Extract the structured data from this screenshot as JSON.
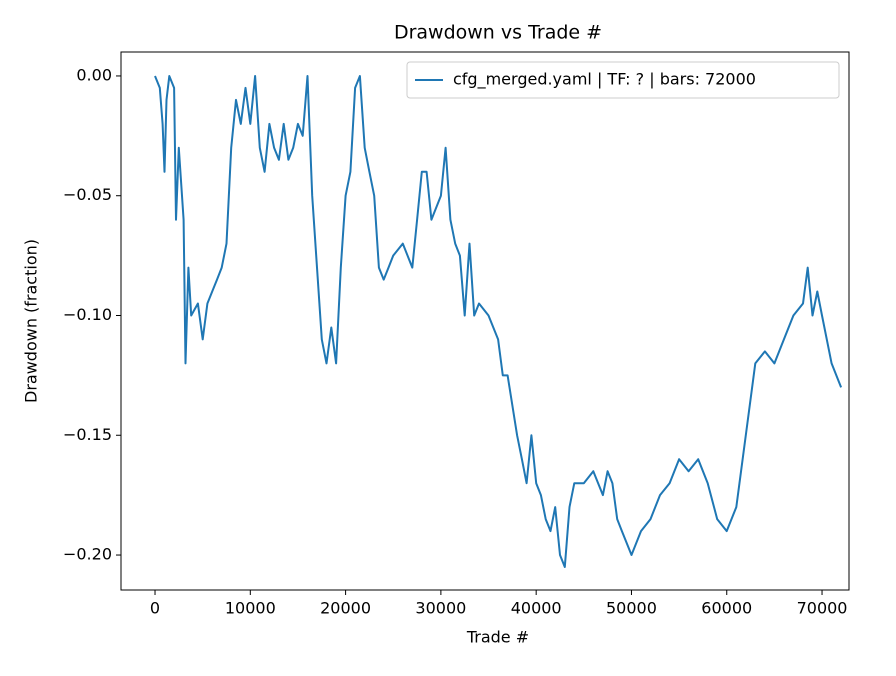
{
  "chart_data": {
    "type": "line",
    "title": "Drawdown vs Trade #",
    "x_label": "Trade #",
    "y_label": "Drawdown (fraction)",
    "x": [
      0,
      500,
      800,
      1000,
      1200,
      1500,
      2000,
      2200,
      2500,
      3000,
      3200,
      3500,
      3800,
      4500,
      5000,
      5500,
      6000,
      6500,
      7000,
      7500,
      8000,
      8500,
      9000,
      9500,
      10000,
      10500,
      11000,
      11500,
      12000,
      12500,
      13000,
      13500,
      14000,
      14500,
      15000,
      15500,
      16000,
      16500,
      17000,
      17500,
      18000,
      18500,
      19000,
      19500,
      20000,
      20500,
      21000,
      21500,
      22000,
      22500,
      23000,
      23500,
      24000,
      24500,
      25000,
      26000,
      27000,
      27500,
      28000,
      28500,
      29000,
      30000,
      30500,
      31000,
      31500,
      32000,
      32500,
      33000,
      33500,
      34000,
      35000,
      36000,
      36500,
      37000,
      38000,
      38500,
      39000,
      39500,
      40000,
      40500,
      41000,
      41500,
      42000,
      42500,
      43000,
      43500,
      44000,
      45000,
      46000,
      47000,
      47500,
      48000,
      48500,
      49000,
      50000,
      51000,
      52000,
      53000,
      54000,
      55000,
      56000,
      57000,
      58000,
      59000,
      60000,
      61000,
      62000,
      63000,
      64000,
      65000,
      66000,
      67000,
      68000,
      68500,
      69000,
      69500,
      70000,
      71000,
      72000
    ],
    "series": [
      {
        "name": "cfg_merged.yaml | TF: ? | bars: 72000",
        "color": "#1f77b4",
        "values": [
          0,
          -0.005,
          -0.02,
          -0.04,
          -0.01,
          0,
          -0.005,
          -0.06,
          -0.03,
          -0.06,
          -0.12,
          -0.08,
          -0.1,
          -0.095,
          -0.11,
          -0.095,
          -0.09,
          -0.085,
          -0.08,
          -0.07,
          -0.03,
          -0.01,
          -0.02,
          -0.005,
          -0.02,
          0,
          -0.03,
          -0.04,
          -0.02,
          -0.03,
          -0.035,
          -0.02,
          -0.035,
          -0.03,
          -0.02,
          -0.025,
          0,
          -0.05,
          -0.08,
          -0.11,
          -0.12,
          -0.105,
          -0.12,
          -0.08,
          -0.05,
          -0.04,
          -0.005,
          0,
          -0.03,
          -0.04,
          -0.05,
          -0.08,
          -0.085,
          -0.08,
          -0.075,
          -0.07,
          -0.08,
          -0.06,
          -0.04,
          -0.04,
          -0.06,
          -0.05,
          -0.03,
          -0.06,
          -0.07,
          -0.075,
          -0.1,
          -0.07,
          -0.1,
          -0.095,
          -0.1,
          -0.11,
          -0.125,
          -0.125,
          -0.15,
          -0.16,
          -0.17,
          -0.15,
          -0.17,
          -0.175,
          -0.185,
          -0.19,
          -0.18,
          -0.2,
          -0.205,
          -0.18,
          -0.17,
          -0.17,
          -0.165,
          -0.175,
          -0.165,
          -0.17,
          -0.185,
          -0.19,
          -0.2,
          -0.19,
          -0.185,
          -0.175,
          -0.17,
          -0.16,
          -0.165,
          -0.16,
          -0.17,
          -0.185,
          -0.19,
          -0.18,
          -0.15,
          -0.12,
          -0.115,
          -0.12,
          -0.11,
          -0.1,
          -0.095,
          -0.08,
          -0.1,
          -0.09,
          -0.1,
          -0.12,
          -0.13
        ]
      }
    ],
    "xlim": [
      -3570,
      72830
    ],
    "xticks": [
      0,
      10000,
      20000,
      30000,
      40000,
      50000,
      60000,
      70000
    ],
    "ylim": [
      -0.2146,
      0.01
    ],
    "yticks": [
      {
        "value": 0,
        "label": "0.00"
      },
      {
        "value": -0.05,
        "label": "−0.05"
      },
      {
        "value": -0.1,
        "label": "−0.10"
      },
      {
        "value": -0.15,
        "label": "−0.15"
      },
      {
        "value": -0.2,
        "label": "−0.20"
      }
    ],
    "legend": "upper right"
  }
}
